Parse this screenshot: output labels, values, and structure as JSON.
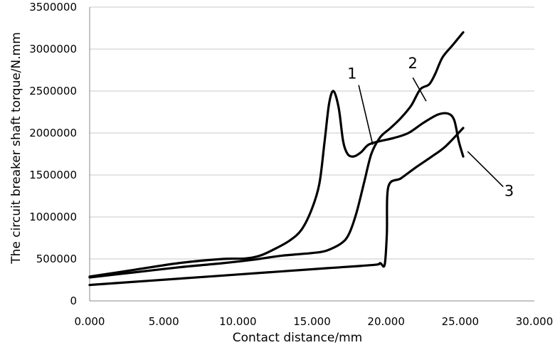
{
  "chart_data": {
    "type": "line",
    "title": "",
    "xlabel": "Contact distance/mm",
    "ylabel": "The circuit breaker shaft torque/N.mm",
    "xlim": [
      0,
      30
    ],
    "ylim": [
      0,
      3500000
    ],
    "x_ticks": [
      0,
      5,
      10,
      15,
      20,
      25,
      30
    ],
    "x_tick_labels": [
      "0.000",
      "5.000",
      "10.000",
      "15.000",
      "20.000",
      "25.000",
      "30.000"
    ],
    "y_ticks": [
      0,
      500000,
      1000000,
      1500000,
      2000000,
      2500000,
      3000000,
      3500000
    ],
    "y_tick_labels": [
      "0",
      "500000",
      "1000000",
      "1500000",
      "2000000",
      "2500000",
      "3000000",
      "3500000"
    ],
    "grid": "horizontal",
    "legend": "none",
    "series": [
      {
        "name": "1",
        "points": [
          [
            0,
            290000
          ],
          [
            3,
            370000
          ],
          [
            6,
            450000
          ],
          [
            9,
            500000
          ],
          [
            10.5,
            505000
          ],
          [
            11.5,
            540000
          ],
          [
            12.5,
            620000
          ],
          [
            13.5,
            720000
          ],
          [
            14.3,
            850000
          ],
          [
            15,
            1100000
          ],
          [
            15.5,
            1400000
          ],
          [
            15.85,
            1900000
          ],
          [
            16.15,
            2350000
          ],
          [
            16.45,
            2500000
          ],
          [
            16.8,
            2300000
          ],
          [
            17.1,
            1900000
          ],
          [
            17.4,
            1750000
          ],
          [
            17.8,
            1720000
          ],
          [
            18.3,
            1770000
          ],
          [
            18.8,
            1860000
          ],
          [
            19.5,
            1900000
          ],
          [
            20.5,
            1940000
          ],
          [
            21.5,
            2000000
          ],
          [
            22.5,
            2120000
          ],
          [
            23.5,
            2220000
          ],
          [
            24.2,
            2230000
          ],
          [
            24.6,
            2150000
          ],
          [
            24.9,
            1900000
          ],
          [
            25.2,
            1720000
          ]
        ]
      },
      {
        "name": "2",
        "points": [
          [
            0,
            280000
          ],
          [
            3,
            340000
          ],
          [
            6,
            400000
          ],
          [
            9,
            450000
          ],
          [
            11,
            490000
          ],
          [
            13,
            540000
          ],
          [
            15,
            570000
          ],
          [
            16,
            600000
          ],
          [
            17,
            690000
          ],
          [
            17.5,
            800000
          ],
          [
            18,
            1050000
          ],
          [
            18.5,
            1400000
          ],
          [
            19,
            1750000
          ],
          [
            19.6,
            1950000
          ],
          [
            20.3,
            2060000
          ],
          [
            21,
            2180000
          ],
          [
            21.7,
            2330000
          ],
          [
            22.3,
            2520000
          ],
          [
            22.9,
            2580000
          ],
          [
            23.3,
            2700000
          ],
          [
            23.8,
            2900000
          ],
          [
            24.5,
            3050000
          ],
          [
            25.2,
            3200000
          ]
        ]
      },
      {
        "name": "3",
        "points": [
          [
            0,
            190000
          ],
          [
            4,
            240000
          ],
          [
            8,
            290000
          ],
          [
            12,
            340000
          ],
          [
            16,
            390000
          ],
          [
            19.2,
            430000
          ],
          [
            19.6,
            450000
          ],
          [
            19.9,
            430000
          ],
          [
            20.05,
            800000
          ],
          [
            20.15,
            1360000
          ],
          [
            21,
            1460000
          ],
          [
            22,
            1590000
          ],
          [
            23,
            1710000
          ],
          [
            24,
            1840000
          ],
          [
            25.2,
            2060000
          ]
        ]
      }
    ],
    "callouts": [
      {
        "text": "1",
        "label_at": [
          17.7,
          2650000
        ],
        "line_from": [
          18.15,
          2570000
        ],
        "line_to": [
          19.1,
          1860000
        ]
      },
      {
        "text": "2",
        "label_at": [
          21.8,
          2770000
        ],
        "line_from": [
          21.8,
          2660000
        ],
        "line_to": [
          22.7,
          2380000
        ]
      },
      {
        "text": "3",
        "label_at": [
          28.3,
          1250000
        ],
        "line_from": [
          27.9,
          1360000
        ],
        "line_to": [
          25.5,
          1780000
        ]
      }
    ]
  }
}
